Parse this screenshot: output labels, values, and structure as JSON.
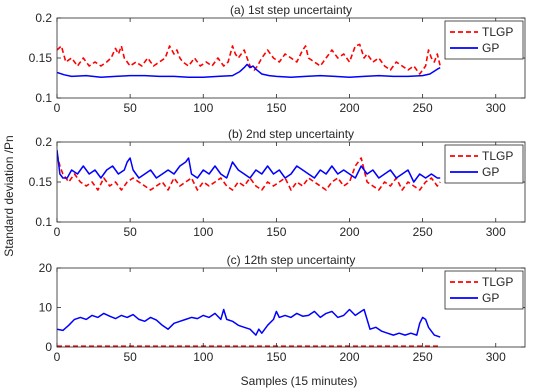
{
  "figure": {
    "ylabel": "Standard  deviation /Pn",
    "xlabel": "Samples (15 minutes)"
  },
  "colors": {
    "tlgp": "#ff0000",
    "gp": "#0000ff",
    "axis": "#262626",
    "legend_border": "#262626"
  },
  "chart_data": [
    {
      "type": "line",
      "title": "(a) 1st step uncertainty",
      "xlim": [
        0,
        320
      ],
      "ylim": [
        0.1,
        0.2
      ],
      "xticks": [
        0,
        50,
        100,
        150,
        200,
        250,
        300
      ],
      "yticks": [
        0.1,
        0.15,
        0.2
      ],
      "ytick_labels": [
        "0.1",
        "0.15",
        "0.2"
      ],
      "grid": false,
      "legend_position": "top-right",
      "series": [
        {
          "name": "TLGP",
          "style": "dashed",
          "x": [
            0,
            3,
            6,
            10,
            14,
            18,
            22,
            26,
            30,
            34,
            37,
            40,
            42,
            44,
            46,
            48,
            50,
            54,
            58,
            62,
            66,
            70,
            74,
            77,
            80,
            82,
            84,
            86,
            90,
            94,
            98,
            102,
            106,
            110,
            114,
            117,
            120,
            122,
            124,
            128,
            132,
            135,
            137,
            140,
            144,
            148,
            152,
            156,
            160,
            164,
            168,
            170,
            172,
            176,
            180,
            184,
            188,
            192,
            196,
            200,
            204,
            207,
            210,
            212,
            216,
            220,
            224,
            228,
            232,
            236,
            240,
            244,
            248,
            252,
            254,
            256,
            258,
            260,
            262
          ],
          "y": [
            0.16,
            0.165,
            0.145,
            0.15,
            0.14,
            0.15,
            0.14,
            0.145,
            0.14,
            0.145,
            0.15,
            0.162,
            0.155,
            0.165,
            0.15,
            0.145,
            0.14,
            0.145,
            0.14,
            0.15,
            0.14,
            0.145,
            0.15,
            0.165,
            0.155,
            0.16,
            0.15,
            0.145,
            0.14,
            0.15,
            0.14,
            0.145,
            0.14,
            0.15,
            0.14,
            0.145,
            0.165,
            0.155,
            0.15,
            0.16,
            0.14,
            0.135,
            0.14,
            0.15,
            0.16,
            0.15,
            0.145,
            0.155,
            0.15,
            0.145,
            0.16,
            0.165,
            0.15,
            0.145,
            0.14,
            0.15,
            0.16,
            0.15,
            0.155,
            0.145,
            0.165,
            0.167,
            0.15,
            0.155,
            0.145,
            0.15,
            0.14,
            0.135,
            0.145,
            0.14,
            0.135,
            0.14,
            0.13,
            0.14,
            0.16,
            0.15,
            0.145,
            0.155,
            0.14
          ]
        },
        {
          "name": "GP",
          "style": "solid",
          "x": [
            0,
            5,
            10,
            20,
            30,
            40,
            50,
            60,
            70,
            80,
            90,
            100,
            110,
            120,
            125,
            128,
            130,
            132,
            134,
            136,
            138,
            140,
            145,
            150,
            160,
            170,
            180,
            190,
            200,
            210,
            220,
            230,
            240,
            250,
            255,
            260,
            262
          ],
          "y": [
            0.132,
            0.129,
            0.127,
            0.128,
            0.126,
            0.127,
            0.128,
            0.128,
            0.127,
            0.127,
            0.126,
            0.126,
            0.127,
            0.128,
            0.133,
            0.138,
            0.142,
            0.138,
            0.14,
            0.136,
            0.133,
            0.13,
            0.128,
            0.127,
            0.126,
            0.127,
            0.128,
            0.127,
            0.126,
            0.127,
            0.128,
            0.127,
            0.127,
            0.128,
            0.13,
            0.136,
            0.138
          ]
        }
      ]
    },
    {
      "type": "line",
      "title": "(b) 2nd step uncertainty",
      "xlim": [
        0,
        320
      ],
      "ylim": [
        0.1,
        0.2
      ],
      "xticks": [
        0,
        50,
        100,
        150,
        200,
        250,
        300
      ],
      "yticks": [
        0.1,
        0.15,
        0.2
      ],
      "ytick_labels": [
        "0.1",
        "0.15",
        "0.2"
      ],
      "grid": false,
      "legend_position": "top-right",
      "series": [
        {
          "name": "TLGP",
          "style": "dashed",
          "x": [
            0,
            2,
            4,
            8,
            12,
            16,
            20,
            24,
            28,
            32,
            36,
            40,
            44,
            48,
            52,
            56,
            60,
            64,
            68,
            72,
            76,
            80,
            84,
            88,
            92,
            96,
            100,
            104,
            108,
            112,
            116,
            120,
            124,
            128,
            132,
            136,
            140,
            144,
            148,
            152,
            156,
            160,
            164,
            168,
            172,
            176,
            180,
            184,
            188,
            192,
            196,
            200,
            204,
            208,
            212,
            216,
            220,
            224,
            228,
            232,
            236,
            240,
            244,
            248,
            252,
            256,
            260,
            262
          ],
          "y": [
            0.185,
            0.17,
            0.16,
            0.15,
            0.16,
            0.15,
            0.145,
            0.15,
            0.14,
            0.155,
            0.145,
            0.15,
            0.14,
            0.15,
            0.155,
            0.15,
            0.145,
            0.14,
            0.145,
            0.15,
            0.14,
            0.155,
            0.145,
            0.15,
            0.155,
            0.14,
            0.15,
            0.145,
            0.15,
            0.155,
            0.145,
            0.14,
            0.15,
            0.145,
            0.155,
            0.145,
            0.14,
            0.15,
            0.145,
            0.15,
            0.155,
            0.14,
            0.15,
            0.145,
            0.155,
            0.15,
            0.145,
            0.14,
            0.15,
            0.155,
            0.145,
            0.15,
            0.17,
            0.18,
            0.15,
            0.145,
            0.14,
            0.15,
            0.145,
            0.155,
            0.14,
            0.15,
            0.145,
            0.14,
            0.15,
            0.155,
            0.145,
            0.15
          ]
        },
        {
          "name": "GP",
          "style": "solid",
          "x": [
            0,
            2,
            4,
            7,
            10,
            14,
            18,
            22,
            26,
            30,
            34,
            38,
            42,
            46,
            48,
            50,
            52,
            56,
            60,
            64,
            68,
            72,
            76,
            80,
            84,
            88,
            90,
            92,
            96,
            100,
            104,
            108,
            112,
            116,
            120,
            124,
            128,
            132,
            136,
            140,
            144,
            148,
            152,
            156,
            160,
            164,
            168,
            172,
            176,
            180,
            184,
            188,
            192,
            196,
            200,
            204,
            208,
            212,
            216,
            220,
            224,
            228,
            232,
            236,
            240,
            244,
            248,
            252,
            256,
            260,
            262
          ],
          "y": [
            0.19,
            0.16,
            0.155,
            0.155,
            0.165,
            0.16,
            0.17,
            0.16,
            0.165,
            0.155,
            0.165,
            0.17,
            0.16,
            0.165,
            0.175,
            0.18,
            0.165,
            0.155,
            0.16,
            0.165,
            0.155,
            0.16,
            0.165,
            0.16,
            0.17,
            0.175,
            0.18,
            0.16,
            0.155,
            0.165,
            0.16,
            0.17,
            0.16,
            0.155,
            0.175,
            0.165,
            0.16,
            0.155,
            0.165,
            0.16,
            0.17,
            0.16,
            0.165,
            0.155,
            0.16,
            0.17,
            0.165,
            0.16,
            0.155,
            0.165,
            0.16,
            0.17,
            0.16,
            0.165,
            0.16,
            0.155,
            0.17,
            0.16,
            0.165,
            0.155,
            0.16,
            0.165,
            0.155,
            0.16,
            0.165,
            0.15,
            0.16,
            0.155,
            0.16,
            0.155,
            0.155
          ]
        }
      ]
    },
    {
      "type": "line",
      "title": "(c) 12th step uncertainty",
      "xlim": [
        0,
        320
      ],
      "ylim": [
        0,
        20
      ],
      "xticks": [
        0,
        50,
        100,
        150,
        200,
        250,
        300
      ],
      "yticks": [
        0,
        10,
        20
      ],
      "ytick_labels": [
        "0",
        "10",
        "20"
      ],
      "grid": false,
      "legend_position": "top-right",
      "series": [
        {
          "name": "TLGP",
          "style": "dashed",
          "x": [
            0,
            20,
            40,
            60,
            80,
            100,
            120,
            140,
            160,
            180,
            200,
            220,
            240,
            262
          ],
          "y": [
            0.2,
            0.2,
            0.2,
            0.2,
            0.2,
            0.2,
            0.2,
            0.2,
            0.2,
            0.2,
            0.2,
            0.2,
            0.2,
            0.2
          ]
        },
        {
          "name": "GP",
          "style": "solid",
          "x": [
            0,
            4,
            8,
            12,
            16,
            20,
            24,
            28,
            32,
            36,
            40,
            44,
            48,
            52,
            56,
            60,
            64,
            68,
            72,
            76,
            80,
            84,
            88,
            92,
            96,
            100,
            104,
            108,
            112,
            114,
            116,
            120,
            124,
            128,
            132,
            136,
            138,
            140,
            144,
            148,
            150,
            152,
            156,
            160,
            164,
            168,
            172,
            176,
            180,
            184,
            188,
            192,
            196,
            200,
            204,
            208,
            210,
            214,
            218,
            222,
            226,
            230,
            234,
            238,
            242,
            246,
            248,
            250,
            252,
            254,
            256,
            258,
            262
          ],
          "y": [
            4.5,
            4.2,
            5.5,
            7.0,
            7.5,
            7.0,
            8.0,
            7.5,
            8.5,
            7.8,
            7.2,
            8.0,
            7.5,
            8.2,
            7.0,
            6.5,
            7.5,
            6.8,
            5.5,
            4.5,
            6.0,
            6.5,
            7.0,
            7.5,
            7.2,
            8.0,
            7.5,
            8.5,
            7.0,
            9.5,
            7.0,
            6.5,
            5.5,
            5.0,
            4.5,
            3.0,
            4.5,
            3.5,
            5.5,
            7.0,
            9.0,
            7.5,
            8.0,
            7.5,
            8.5,
            7.8,
            8.0,
            9.0,
            7.5,
            8.5,
            9.0,
            7.5,
            8.0,
            9.5,
            8.0,
            9.0,
            9.5,
            4.5,
            5.0,
            4.0,
            3.5,
            3.0,
            3.5,
            3.0,
            3.5,
            3.0,
            6.0,
            7.5,
            7.0,
            5.0,
            4.0,
            3.0,
            2.5
          ]
        }
      ]
    }
  ]
}
